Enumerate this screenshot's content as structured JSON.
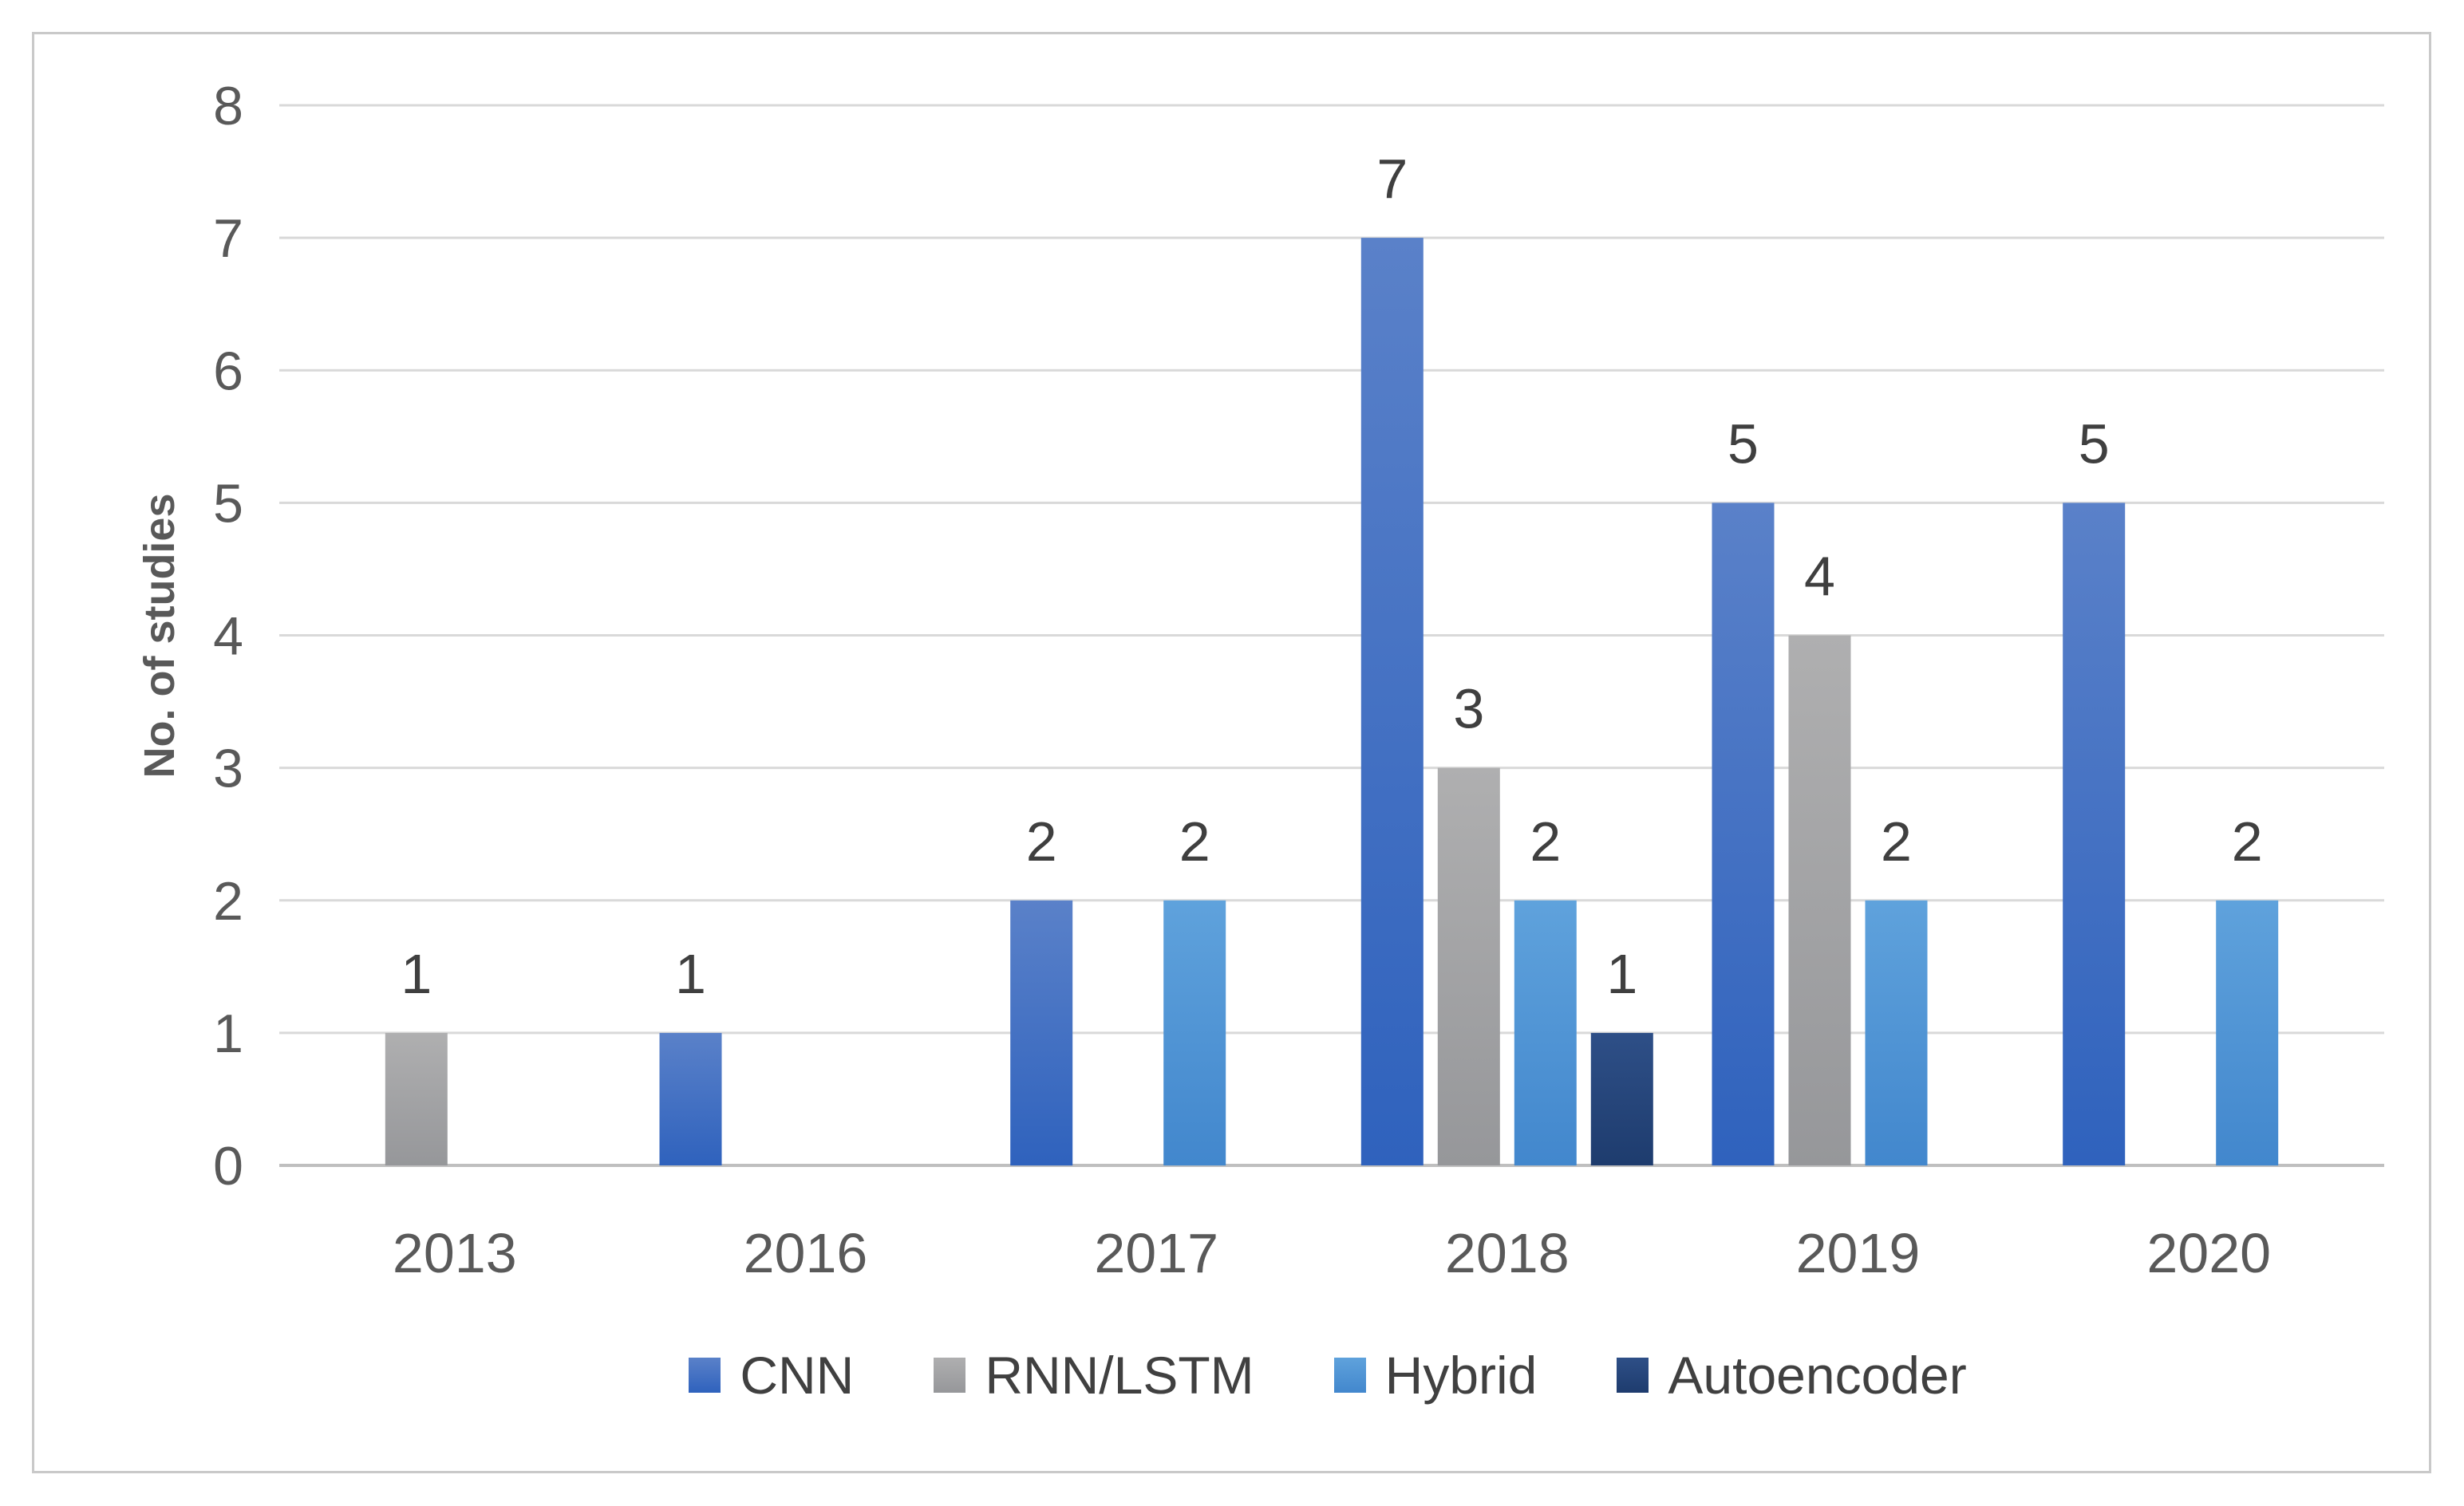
{
  "chart_data": {
    "type": "bar",
    "title": "",
    "ylabel": "No. of studies",
    "xlabel": "",
    "categories": [
      "2013",
      "2016",
      "2017",
      "2018",
      "2019",
      "2020"
    ],
    "series": [
      {
        "name": "CNN",
        "values": [
          0,
          1,
          2,
          7,
          5,
          5
        ],
        "color_top": "#5A81C9",
        "color_bottom": "#2F62BD"
      },
      {
        "name": "RNN/LSTM",
        "values": [
          1,
          0,
          0,
          3,
          4,
          0
        ],
        "color_top": "#AFAFB0",
        "color_bottom": "#96979A"
      },
      {
        "name": "Hybrid",
        "values": [
          0,
          0,
          2,
          2,
          2,
          2
        ],
        "color_top": "#5FA2DC",
        "color_bottom": "#4287CD"
      },
      {
        "name": "Autoencoder",
        "values": [
          0,
          0,
          0,
          1,
          0,
          0
        ],
        "color_top": "#2E4F87",
        "color_bottom": "#1E3C6E"
      }
    ],
    "ylim": [
      0,
      8
    ],
    "yticks": [
      0,
      1,
      2,
      3,
      4,
      5,
      6,
      7,
      8
    ],
    "grid": true,
    "data_labels": true,
    "legend_position": "bottom",
    "style": {
      "grid_color": "#D9D9D9",
      "axis_line_color": "#BFBFBF",
      "tick_label_color": "#595959",
      "category_label_color": "#595959",
      "data_label_color": "#3F3F3F",
      "legend_text_color": "#404040",
      "y_title_color": "#595959",
      "figure_border_color": "#C9C9C9",
      "background": "#FFFFFF"
    }
  }
}
